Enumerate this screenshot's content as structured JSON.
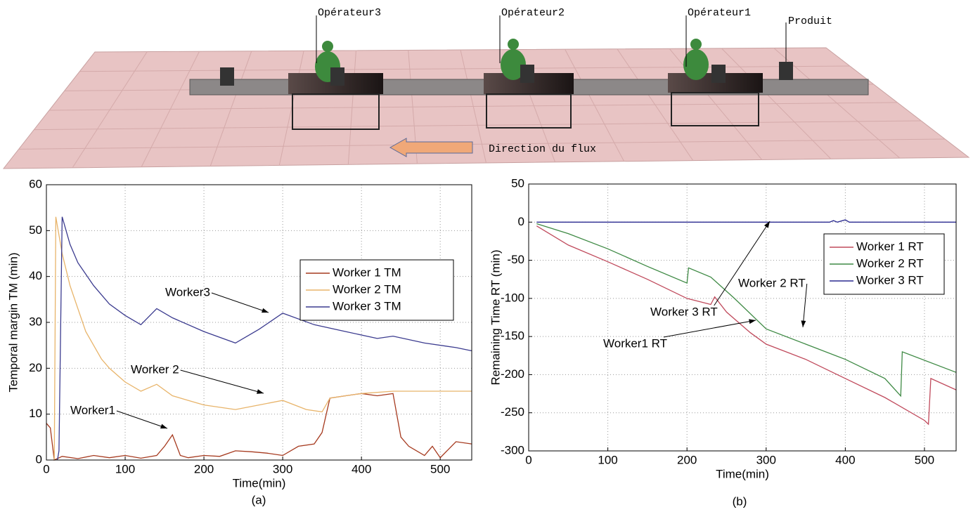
{
  "scene": {
    "labels": [
      "Opérateur3",
      "Opérateur2",
      "Opérateur1",
      "Produit"
    ],
    "flow_label": "Direction du flux"
  },
  "chart_data": [
    {
      "type": "line",
      "caption": "(a)",
      "xlabel": "Time(min)",
      "ylabel": "Temporal margin TM (min)",
      "xlim": [
        0,
        540
      ],
      "ylim": [
        0,
        60
      ],
      "xticks": [
        0,
        100,
        200,
        300,
        400,
        500
      ],
      "yticks": [
        0,
        10,
        20,
        30,
        40,
        50,
        60
      ],
      "grid": true,
      "legend": "right",
      "annotations": [
        "Worker1",
        "Worker 2",
        "Worker3"
      ],
      "series": [
        {
          "name": "Worker 1 TM",
          "color": "#a63a1f",
          "x": [
            0,
            5,
            10,
            20,
            40,
            60,
            80,
            100,
            120,
            140,
            150,
            160,
            170,
            180,
            200,
            220,
            240,
            260,
            280,
            300,
            320,
            340,
            350,
            360,
            380,
            400,
            420,
            440,
            450,
            460,
            480,
            490,
            500,
            520,
            540
          ],
          "values": [
            8,
            7,
            0,
            0.8,
            0.3,
            1,
            0.5,
            1,
            0.4,
            1,
            3,
            5.5,
            1,
            0.5,
            1,
            0.8,
            2,
            1.8,
            1.5,
            1,
            3,
            3.5,
            6,
            13.5,
            14,
            14.5,
            14,
            14.5,
            5,
            3,
            1,
            3,
            0.5,
            4,
            3.5
          ]
        },
        {
          "name": "Worker 2 TM",
          "color": "#e8b46a",
          "x": [
            10,
            12,
            20,
            30,
            40,
            50,
            60,
            70,
            80,
            90,
            100,
            120,
            140,
            160,
            180,
            200,
            240,
            270,
            300,
            330,
            350,
            360,
            380,
            400,
            440,
            540
          ],
          "values": [
            0,
            53,
            45,
            38,
            33,
            28,
            25,
            22,
            20,
            18.5,
            17,
            15,
            16.5,
            14,
            13,
            12,
            11,
            12,
            13,
            11,
            10.5,
            13.5,
            14,
            14.5,
            15,
            15
          ]
        },
        {
          "name": "Worker 3 TM",
          "color": "#3b3b8f",
          "x": [
            14,
            16,
            20,
            30,
            40,
            60,
            80,
            100,
            120,
            140,
            160,
            200,
            240,
            270,
            300,
            340,
            380,
            420,
            440,
            480,
            520,
            540
          ],
          "values": [
            0,
            2,
            53,
            47,
            43,
            38,
            34,
            31.5,
            29.5,
            33,
            31,
            28,
            25.5,
            28.5,
            32,
            29.5,
            28,
            26.5,
            27,
            25.5,
            24.5,
            23.8
          ]
        }
      ]
    },
    {
      "type": "line",
      "caption": "(b)",
      "xlabel": "Time(min)",
      "ylabel": "Remaining Time RT (min)",
      "xlim": [
        0,
        540
      ],
      "ylim": [
        -300,
        50
      ],
      "xticks": [
        0,
        100,
        200,
        300,
        400,
        500
      ],
      "yticks": [
        -300,
        -250,
        -200,
        -150,
        -100,
        -50,
        0,
        50
      ],
      "grid": true,
      "legend": "upper right",
      "annotations": [
        "Worker 3 RT",
        "Worker 2 RT",
        "Worker1 RT"
      ],
      "series": [
        {
          "name": "Worker 1 RT",
          "color": "#c04a5c",
          "x": [
            10,
            50,
            100,
            150,
            200,
            230,
            235,
            250,
            280,
            300,
            350,
            400,
            450,
            500,
            505,
            508,
            540
          ],
          "values": [
            -5,
            -30,
            -52,
            -75,
            -100,
            -108,
            -98,
            -118,
            -145,
            -160,
            -180,
            -205,
            -230,
            -260,
            -265,
            -205,
            -220
          ]
        },
        {
          "name": "Worker 2 RT",
          "color": "#3f8a45",
          "x": [
            10,
            50,
            100,
            150,
            200,
            202,
            230,
            260,
            300,
            350,
            400,
            450,
            470,
            472,
            540
          ],
          "values": [
            -2,
            -15,
            -35,
            -58,
            -80,
            -60,
            -72,
            -100,
            -140,
            -160,
            -180,
            -205,
            -228,
            -170,
            -197
          ]
        },
        {
          "name": "Worker 3 RT",
          "color": "#2a2a90",
          "x": [
            10,
            380,
            385,
            390,
            400,
            405,
            540
          ],
          "values": [
            0,
            0,
            2,
            0,
            3,
            0,
            0
          ]
        }
      ]
    }
  ]
}
